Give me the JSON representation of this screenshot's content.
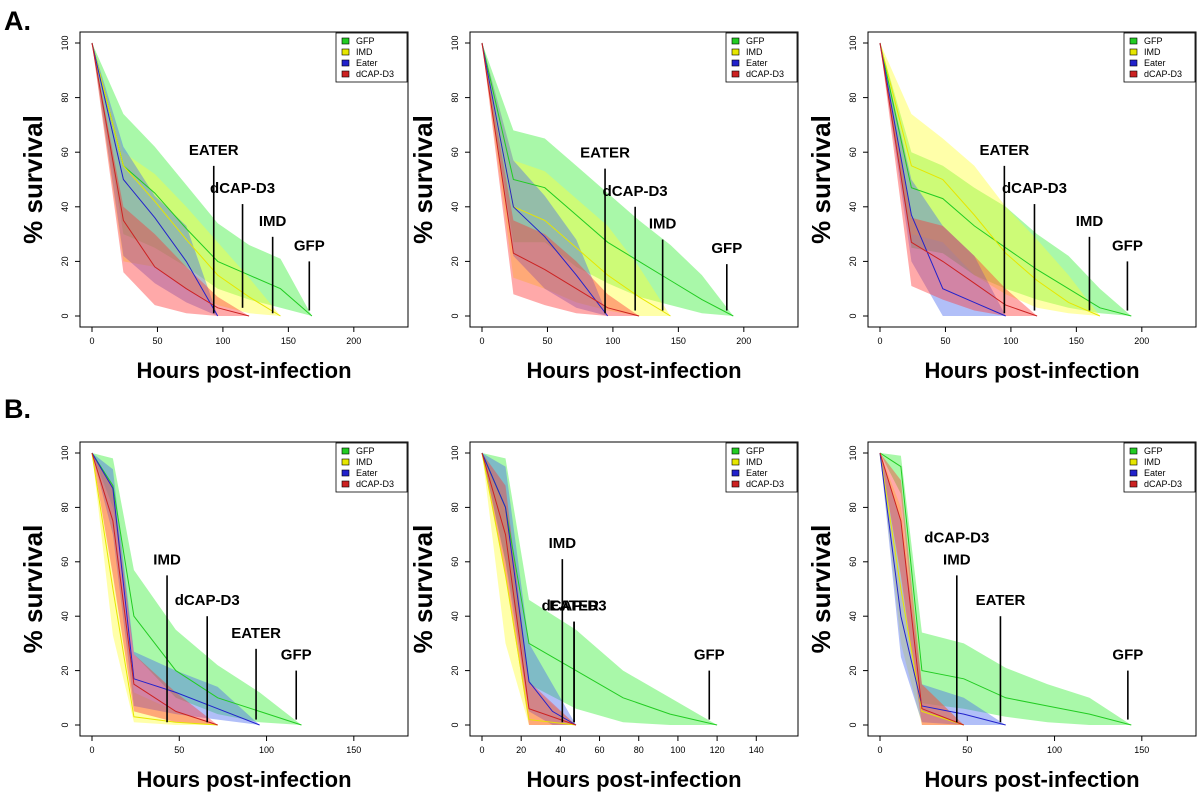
{
  "panel_labels": [
    "A.",
    "B."
  ],
  "legend_labels": [
    "GFP",
    "IMD",
    "Eater",
    "dCAP-D3"
  ],
  "colors": {
    "GFP": "#22cc22",
    "IMD": "#e6e600",
    "Eater": "#2222cc",
    "dCAP-D3": "#cc2222",
    "band_GFP": "#33ee33",
    "band_IMD": "#ffff33",
    "band_Eater": "#4466ee",
    "band_dCAP-D3": "#ff3333"
  },
  "chart_data": [
    {
      "type": "area",
      "row": "A.",
      "xlabel": "Hours post-infection",
      "ylabel": "% survival",
      "xlim": [
        0,
        220
      ],
      "ylim": [
        0,
        100
      ],
      "xticks": [
        0,
        50,
        100,
        150,
        200
      ],
      "yticks": [
        0,
        20,
        40,
        60,
        80,
        100
      ],
      "series": [
        {
          "name": "GFP",
          "x": [
            0,
            24,
            48,
            72,
            96,
            120,
            144,
            168
          ],
          "y": [
            100,
            55,
            45,
            32,
            20,
            15,
            10,
            0
          ],
          "lower": [
            100,
            30,
            25,
            18,
            10,
            6,
            3,
            0
          ],
          "upper": [
            100,
            74,
            62,
            48,
            34,
            26,
            21,
            0
          ]
        },
        {
          "name": "IMD",
          "x": [
            0,
            24,
            48,
            72,
            96,
            120,
            144
          ],
          "y": [
            100,
            55,
            42,
            28,
            15,
            7,
            0
          ],
          "lower": [
            100,
            20,
            18,
            10,
            4,
            1,
            0
          ],
          "upper": [
            100,
            60,
            52,
            40,
            27,
            14,
            0
          ]
        },
        {
          "name": "Eater",
          "x": [
            0,
            24,
            48,
            72,
            96
          ],
          "y": [
            100,
            50,
            36,
            20,
            0
          ],
          "lower": [
            100,
            22,
            12,
            5,
            0
          ],
          "upper": [
            100,
            62,
            44,
            33,
            0
          ]
        },
        {
          "name": "dCAP-D3",
          "x": [
            0,
            24,
            48,
            72,
            96,
            120
          ],
          "y": [
            100,
            35,
            18,
            10,
            3,
            0
          ],
          "lower": [
            100,
            16,
            4,
            1,
            0,
            0
          ],
          "upper": [
            100,
            40,
            30,
            18,
            7,
            0
          ]
        }
      ],
      "annotations": [
        {
          "text": "EATER",
          "x": 93,
          "y": 55,
          "x_end": 93,
          "y_end": 1
        },
        {
          "text": "dCAP-D3",
          "x": 115,
          "y": 41,
          "x_end": 115,
          "y_end": 3
        },
        {
          "text": "IMD",
          "x": 138,
          "y": 29,
          "x_end": 138,
          "y_end": 1
        },
        {
          "text": "GFP",
          "x": 166,
          "y": 20,
          "x_end": 166,
          "y_end": 2
        }
      ]
    },
    {
      "type": "area",
      "row": "A.",
      "xlabel": "Hours post-infection",
      "ylabel": "% survival",
      "xlim": [
        0,
        220
      ],
      "ylim": [
        0,
        100
      ],
      "xticks": [
        0,
        50,
        100,
        150,
        200
      ],
      "yticks": [
        0,
        20,
        40,
        60,
        80,
        100
      ],
      "series": [
        {
          "name": "GFP",
          "x": [
            0,
            24,
            48,
            72,
            96,
            120,
            144,
            168,
            192
          ],
          "y": [
            100,
            50,
            47,
            37,
            27,
            20,
            13,
            6,
            0
          ],
          "lower": [
            100,
            27,
            27,
            18,
            12,
            7,
            4,
            1,
            0
          ],
          "upper": [
            100,
            68,
            65,
            55,
            45,
            35,
            26,
            15,
            0
          ]
        },
        {
          "name": "IMD",
          "x": [
            0,
            24,
            48,
            72,
            96,
            120,
            144
          ],
          "y": [
            100,
            40,
            35,
            25,
            15,
            7,
            0
          ],
          "lower": [
            100,
            14,
            10,
            5,
            2,
            0,
            0
          ],
          "upper": [
            100,
            57,
            53,
            43,
            33,
            18,
            0
          ]
        },
        {
          "name": "Eater",
          "x": [
            0,
            24,
            48,
            72,
            96
          ],
          "y": [
            100,
            40,
            29,
            15,
            0
          ],
          "lower": [
            100,
            22,
            10,
            3,
            0
          ],
          "upper": [
            100,
            57,
            44,
            28,
            0
          ]
        },
        {
          "name": "dCAP-D3",
          "x": [
            0,
            24,
            48,
            72,
            96,
            120
          ],
          "y": [
            100,
            23,
            17,
            10,
            3,
            0
          ],
          "lower": [
            100,
            8,
            4,
            1,
            0,
            0
          ],
          "upper": [
            100,
            35,
            30,
            20,
            8,
            0
          ]
        }
      ],
      "annotations": [
        {
          "text": "EATER",
          "x": 94,
          "y": 54,
          "x_end": 94,
          "y_end": 1
        },
        {
          "text": "dCAP-D3",
          "x": 117,
          "y": 40,
          "x_end": 117,
          "y_end": 2
        },
        {
          "text": "IMD",
          "x": 138,
          "y": 28,
          "x_end": 138,
          "y_end": 2
        },
        {
          "text": "GFP",
          "x": 187,
          "y": 19,
          "x_end": 187,
          "y_end": 2
        }
      ]
    },
    {
      "type": "area",
      "row": "A.",
      "xlabel": "Hours post-infection",
      "ylabel": "% survival",
      "xlim": [
        0,
        220
      ],
      "ylim": [
        0,
        100
      ],
      "xticks": [
        0,
        50,
        100,
        150,
        200
      ],
      "yticks": [
        0,
        20,
        40,
        60,
        80,
        100
      ],
      "series": [
        {
          "name": "GFP",
          "x": [
            0,
            24,
            48,
            72,
            96,
            120,
            144,
            168,
            192
          ],
          "y": [
            100,
            47,
            43,
            33,
            25,
            17,
            10,
            3,
            0
          ],
          "lower": [
            100,
            25,
            23,
            15,
            10,
            6,
            3,
            1,
            0
          ],
          "upper": [
            100,
            60,
            55,
            47,
            40,
            30,
            22,
            10,
            0
          ]
        },
        {
          "name": "IMD",
          "x": [
            0,
            24,
            48,
            72,
            96,
            120,
            144,
            168
          ],
          "y": [
            100,
            55,
            50,
            37,
            23,
            13,
            5,
            0
          ],
          "lower": [
            100,
            30,
            27,
            15,
            8,
            3,
            1,
            0
          ],
          "upper": [
            100,
            74,
            65,
            55,
            40,
            28,
            15,
            0
          ]
        },
        {
          "name": "Eater",
          "x": [
            0,
            24,
            48,
            72,
            96
          ],
          "y": [
            100,
            37,
            10,
            5,
            0
          ],
          "lower": [
            100,
            20,
            0,
            0,
            0
          ],
          "upper": [
            100,
            50,
            33,
            22,
            0
          ]
        },
        {
          "name": "dCAP-D3",
          "x": [
            0,
            24,
            48,
            72,
            96,
            120
          ],
          "y": [
            100,
            27,
            20,
            12,
            4,
            0
          ],
          "lower": [
            100,
            11,
            6,
            2,
            0,
            0
          ],
          "upper": [
            100,
            36,
            33,
            22,
            10,
            0
          ]
        }
      ],
      "annotations": [
        {
          "text": "EATER",
          "x": 95,
          "y": 55,
          "x_end": 95,
          "y_end": 1
        },
        {
          "text": "dCAP-D3",
          "x": 118,
          "y": 41,
          "x_end": 118,
          "y_end": 2
        },
        {
          "text": "IMD",
          "x": 160,
          "y": 29,
          "x_end": 160,
          "y_end": 2
        },
        {
          "text": "GFP",
          "x": 189,
          "y": 20,
          "x_end": 189,
          "y_end": 2
        }
      ]
    },
    {
      "type": "area",
      "row": "B.",
      "xlabel": "Hours post-infection",
      "ylabel": "% survival",
      "xlim": [
        0,
        165
      ],
      "ylim": [
        0,
        100
      ],
      "xticks": [
        0,
        50,
        100,
        150
      ],
      "yticks": [
        0,
        20,
        40,
        60,
        80,
        100
      ],
      "series": [
        {
          "name": "GFP",
          "x": [
            0,
            12,
            24,
            48,
            72,
            96,
            120
          ],
          "y": [
            100,
            88,
            40,
            20,
            10,
            5,
            0
          ],
          "lower": [
            100,
            80,
            26,
            10,
            4,
            1,
            0
          ],
          "upper": [
            100,
            98,
            57,
            35,
            22,
            12,
            0
          ]
        },
        {
          "name": "IMD",
          "x": [
            0,
            12,
            24,
            48,
            72
          ],
          "y": [
            100,
            50,
            3,
            1,
            0
          ],
          "lower": [
            100,
            33,
            1,
            0,
            0
          ],
          "upper": [
            100,
            80,
            12,
            5,
            0
          ]
        },
        {
          "name": "Eater",
          "x": [
            0,
            12,
            24,
            48,
            72,
            96
          ],
          "y": [
            100,
            87,
            17,
            12,
            6,
            0
          ],
          "lower": [
            100,
            70,
            7,
            4,
            2,
            0
          ],
          "upper": [
            100,
            94,
            27,
            20,
            14,
            0
          ]
        },
        {
          "name": "dCAP-D3",
          "x": [
            0,
            12,
            24,
            48,
            72
          ],
          "y": [
            100,
            75,
            15,
            5,
            0
          ],
          "lower": [
            100,
            55,
            5,
            1,
            0
          ],
          "upper": [
            100,
            88,
            26,
            12,
            0
          ]
        }
      ],
      "annotations": [
        {
          "text": "IMD",
          "x": 43,
          "y": 55,
          "x_end": 43,
          "y_end": 1
        },
        {
          "text": "dCAP-D3",
          "x": 66,
          "y": 40,
          "x_end": 66,
          "y_end": 1
        },
        {
          "text": "EATER",
          "x": 94,
          "y": 28,
          "x_end": 94,
          "y_end": 2
        },
        {
          "text": "GFP",
          "x": 117,
          "y": 20,
          "x_end": 117,
          "y_end": 2
        }
      ]
    },
    {
      "type": "area",
      "row": "B.",
      "xlabel": "Hours post-infection",
      "ylabel": "% survival",
      "xlim": [
        0,
        147
      ],
      "ylim": [
        0,
        100
      ],
      "xticks": [
        0,
        20,
        40,
        60,
        80,
        100,
        120,
        140
      ],
      "yticks": [
        0,
        20,
        40,
        60,
        80,
        100
      ],
      "series": [
        {
          "name": "GFP",
          "x": [
            0,
            12,
            24,
            48,
            72,
            96,
            120
          ],
          "y": [
            100,
            80,
            30,
            20,
            10,
            4,
            0
          ],
          "lower": [
            100,
            60,
            15,
            6,
            1,
            0,
            0
          ],
          "upper": [
            100,
            98,
            46,
            35,
            20,
            10,
            0
          ]
        },
        {
          "name": "IMD",
          "x": [
            0,
            12,
            24,
            48
          ],
          "y": [
            100,
            55,
            2,
            0
          ],
          "lower": [
            100,
            30,
            0,
            0
          ],
          "upper": [
            100,
            80,
            15,
            0
          ]
        },
        {
          "name": "Eater",
          "x": [
            0,
            12,
            24,
            36,
            48
          ],
          "y": [
            100,
            80,
            16,
            5,
            0
          ],
          "lower": [
            100,
            60,
            5,
            0,
            0
          ],
          "upper": [
            100,
            95,
            30,
            15,
            0
          ]
        },
        {
          "name": "dCAP-D3",
          "x": [
            0,
            12,
            24,
            48
          ],
          "y": [
            100,
            70,
            6,
            0
          ],
          "lower": [
            100,
            55,
            0,
            0
          ],
          "upper": [
            100,
            88,
            16,
            0
          ]
        }
      ],
      "annotations": [
        {
          "text": "IMD",
          "x": 41,
          "y": 61,
          "x_end": 41,
          "y_end": 1
        },
        {
          "text": "EATER",
          "x": 47,
          "y": 38,
          "x_end": 47,
          "y_end": 1
        },
        {
          "text": "dCAP-D3",
          "x": 47,
          "y": 38,
          "x_end": 47,
          "y_end": 1
        },
        {
          "text": "GFP",
          "x": 116,
          "y": 20,
          "x_end": 116,
          "y_end": 2
        }
      ]
    },
    {
      "type": "area",
      "row": "B.",
      "xlabel": "Hours post-infection",
      "ylabel": "% survival",
      "xlim": [
        0,
        165
      ],
      "ylim": [
        0,
        100
      ],
      "xticks": [
        0,
        50,
        100,
        150
      ],
      "yticks": [
        0,
        20,
        40,
        60,
        80,
        100
      ],
      "series": [
        {
          "name": "GFP",
          "x": [
            0,
            12,
            24,
            48,
            72,
            96,
            120,
            144
          ],
          "y": [
            100,
            95,
            20,
            17,
            10,
            7,
            4,
            0
          ],
          "lower": [
            100,
            85,
            8,
            6,
            3,
            1,
            0,
            0
          ],
          "upper": [
            100,
            99,
            34,
            30,
            21,
            15,
            10,
            0
          ]
        },
        {
          "name": "IMD",
          "x": [
            0,
            12,
            24,
            48
          ],
          "y": [
            100,
            50,
            5,
            0
          ],
          "lower": [
            100,
            30,
            0,
            0
          ],
          "upper": [
            100,
            80,
            15,
            0
          ]
        },
        {
          "name": "Eater",
          "x": [
            0,
            12,
            24,
            48,
            72
          ],
          "y": [
            100,
            40,
            7,
            4,
            0
          ],
          "lower": [
            100,
            25,
            1,
            0,
            0
          ],
          "upper": [
            100,
            75,
            15,
            10,
            0
          ]
        },
        {
          "name": "dCAP-D3",
          "x": [
            0,
            12,
            24,
            48
          ],
          "y": [
            100,
            75,
            6,
            0
          ],
          "lower": [
            100,
            55,
            0,
            0
          ],
          "upper": [
            100,
            90,
            15,
            0
          ]
        }
      ],
      "annotations": [
        {
          "text": "dCAP-D3",
          "x": 44,
          "y": 63,
          "x_end": 44,
          "y_end": 63
        },
        {
          "text": "IMD",
          "x": 44,
          "y": 55,
          "x_end": 44,
          "y_end": 1
        },
        {
          "text": "EATER",
          "x": 69,
          "y": 40,
          "x_end": 69,
          "y_end": 1
        },
        {
          "text": "GFP",
          "x": 142,
          "y": 20,
          "x_end": 142,
          "y_end": 2
        }
      ]
    }
  ]
}
